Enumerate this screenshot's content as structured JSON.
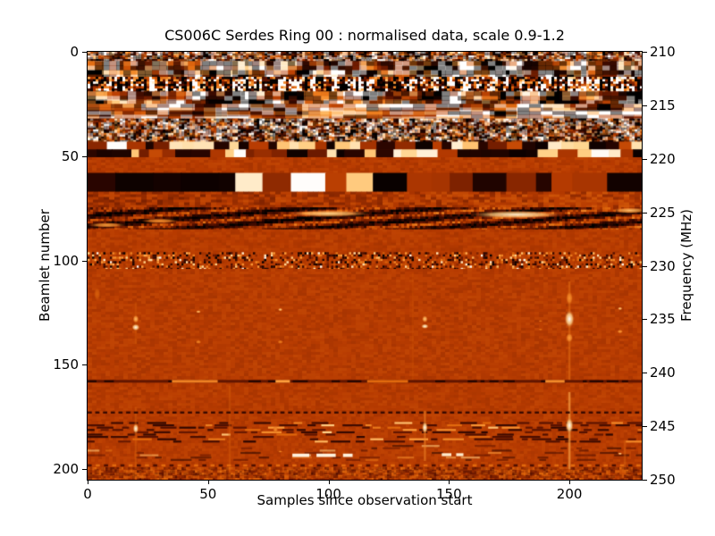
{
  "figure": {
    "title": "CS006C Serdes Ring 00 : normalised data, scale 0.9-1.2",
    "xlabel": "Samples since observation start",
    "ylabel_left": "Beamlet number",
    "ylabel_right": "Frequency (MHz)",
    "background": "#ffffff",
    "border_color": "#000000"
  },
  "axes": {
    "x_ticks": [
      0,
      50,
      100,
      150,
      200
    ],
    "y_left_ticks": [
      0,
      50,
      100,
      150,
      200
    ],
    "y_right_ticks": [
      210,
      215,
      220,
      225,
      230,
      235,
      240,
      245,
      250
    ],
    "x_range": [
      0,
      230
    ],
    "y_left_range": [
      0,
      205
    ],
    "y_right_range": [
      210,
      250
    ]
  },
  "chart_data": {
    "type": "heatmap",
    "title": "CS006C Serdes Ring 00 : normalised data, scale 0.9-1.2",
    "xlabel": "Samples since observation start",
    "ylabel": "Beamlet number",
    "ylabel2": "Frequency (MHz)",
    "x_range_samples": [
      0,
      230
    ],
    "beamlet_range": [
      0,
      205
    ],
    "frequency_range_mhz": [
      210,
      250
    ],
    "value_scale": [
      0.9,
      1.2
    ],
    "colormap_stops": [
      [
        0.0,
        "#000000"
      ],
      [
        0.18,
        "#2a0600"
      ],
      [
        0.35,
        "#5e1400"
      ],
      [
        0.55,
        "#b83c02"
      ],
      [
        0.72,
        "#e26a0e"
      ],
      [
        0.85,
        "#ff9f3c"
      ],
      [
        0.93,
        "#ffd58e"
      ],
      [
        1.0,
        "#ffffff"
      ]
    ],
    "bands": [
      {
        "rows": [
          0,
          4.5
        ],
        "style": "mottlehi",
        "seed": 11,
        "desc": "mottled orange/dark noise"
      },
      {
        "rows": [
          4.5,
          12
        ],
        "style": "blobs",
        "seed": 12,
        "desc": "large dark patches with bright blobs"
      },
      {
        "rows": [
          12,
          19
        ],
        "style": "fine",
        "seed": 13,
        "desc": "dense fine vertical RFI striping"
      },
      {
        "rows": [
          19,
          25
        ],
        "style": "darkblobs",
        "seed": 14,
        "desc": "dark smooth blobs"
      },
      {
        "rows": [
          25,
          32
        ],
        "style": "brightstreaks",
        "seed": 15,
        "desc": "bright horizontal smooth streaks"
      },
      {
        "rows": [
          32,
          43
        ],
        "style": "mottlehi",
        "seed": 16,
        "desc": "noisy mottle, high contrast"
      },
      {
        "rows": [
          43,
          50.5
        ],
        "style": "blocks",
        "seed": 17,
        "desc": "checkered black/white segments"
      },
      {
        "rows": [
          50.5,
          58
        ],
        "style": "flat",
        "seed": 18,
        "desc": "quiet flat band"
      },
      {
        "rows": [
          58,
          67
        ],
        "style": "bigblocks",
        "seed": 19,
        "desc": "large black and white rectangles"
      },
      {
        "rows": [
          67,
          74.5
        ],
        "style": "grad",
        "seed": 20,
        "desc": "orange with slight gradient"
      },
      {
        "rows": [
          74.5,
          85
        ],
        "style": "diag",
        "seed": 21,
        "desc": "dark band with diagonal fringes and bright streaks"
      },
      {
        "rows": [
          85,
          96
        ],
        "style": "flat",
        "seed": 22,
        "desc": "quiet flat band"
      },
      {
        "rows": [
          96,
          104
        ],
        "style": "speckle",
        "seed": 23,
        "desc": "salt-and-pepper speckle RFI"
      },
      {
        "rows": [
          104,
          156.5
        ],
        "style": "flat",
        "seed": 24,
        "desc": "quiet region with isolated transients"
      },
      {
        "rows": [
          158,
          171.5
        ],
        "style": "flat",
        "seed": 25,
        "desc": "quiet flat band"
      },
      {
        "rows": [
          173.5,
          176.5
        ],
        "style": "flat",
        "seed": 26,
        "desc": "quiet flat band"
      },
      {
        "rows": [
          176.5,
          187.5
        ],
        "style": "dashrows",
        "seed": 27,
        "desc": "strip of dark dashes with bright bursts"
      },
      {
        "rows": [
          187.5,
          196.5
        ],
        "style": "faintrows",
        "seed": 28,
        "desc": "faint striped rows"
      },
      {
        "rows": [
          199,
          205
        ],
        "style": "mottlelow",
        "seed": 29,
        "desc": "low-contrast mottle at bottom"
      }
    ],
    "features": {
      "vstreaks": [
        [
          200,
          110,
          158,
          0.68,
          0.45
        ],
        [
          200,
          163,
          200,
          0.8,
          0.55
        ],
        [
          140,
          172,
          196,
          0.75,
          0.4
        ],
        [
          59,
          160,
          204,
          0.63,
          0.35
        ],
        [
          135,
          106,
          158,
          0.6,
          0.25
        ],
        [
          223,
          186,
          199,
          0.68,
          0.3
        ],
        [
          20,
          120,
          140,
          0.62,
          0.3
        ],
        [
          20,
          170,
          200,
          0.65,
          0.35
        ]
      ],
      "spots": [
        [
          4,
          116,
          1.5,
          7,
          0.68
        ],
        [
          20,
          128,
          1.4,
          4,
          0.9
        ],
        [
          20,
          132,
          1.8,
          3.5,
          1.0
        ],
        [
          46,
          124.5,
          1.1,
          1.6,
          0.92
        ],
        [
          46,
          139,
          1.3,
          2,
          0.8
        ],
        [
          80,
          123.5,
          1.1,
          1.6,
          0.93
        ],
        [
          80,
          139,
          1.3,
          2,
          0.78
        ],
        [
          140,
          128,
          1.3,
          3.5,
          0.92
        ],
        [
          140,
          131.5,
          1.7,
          2.5,
          1.0
        ],
        [
          188,
          129,
          0.9,
          1.2,
          0.75
        ],
        [
          188,
          133,
          0.9,
          1.2,
          0.75
        ],
        [
          200,
          118,
          1.6,
          7,
          0.82
        ],
        [
          200,
          128,
          2.2,
          9,
          1.0
        ],
        [
          200,
          137,
          1.6,
          5,
          0.85
        ],
        [
          221,
          123,
          1.1,
          1.6,
          0.93
        ],
        [
          221,
          134,
          1.3,
          2,
          0.85
        ],
        [
          100,
          77.5,
          18,
          3.5,
          0.93
        ],
        [
          178,
          78,
          20,
          4,
          0.97
        ],
        [
          30,
          81,
          8,
          2.5,
          0.82
        ],
        [
          225,
          76,
          8,
          3,
          0.9
        ],
        [
          8,
          83,
          8,
          2.5,
          0.85
        ],
        [
          20,
          180.5,
          1.3,
          5,
          1.0
        ],
        [
          140,
          180,
          1.3,
          6,
          1.0
        ],
        [
          200,
          179,
          1.8,
          8,
          1.0
        ],
        [
          78,
          181,
          1.2,
          3,
          0.82
        ],
        [
          221,
          192.5,
          1.0,
          1.2,
          0.95
        ],
        [
          80,
          191.5,
          1.0,
          1.2,
          0.8
        ]
      ],
      "hline": {
        "b": 157.2,
        "h_rows": 1.3,
        "v": 0.36,
        "bright_segments": [
          [
            35,
            54,
            0.78
          ],
          [
            78,
            84,
            0.85
          ],
          [
            116,
            133,
            0.72
          ],
          [
            190,
            198,
            0.8
          ]
        ]
      },
      "dash_groups": [
        {
          "b": 192.5,
          "h_rows": 1.6,
          "v": 0.98,
          "segments": [
            [
              85,
              92
            ],
            [
              95,
              103
            ],
            [
              106,
              110
            ]
          ]
        },
        {
          "b": 192.3,
          "h_rows": 1.4,
          "v": 0.97,
          "segments": [
            [
              147,
              151
            ],
            [
              153,
              156
            ]
          ]
        }
      ],
      "dotlines": [
        {
          "b": 172.3,
          "h_rows": 1.0,
          "period": 3.2,
          "duty": 0.55,
          "v": 0.22
        },
        {
          "b": 197.6,
          "h_rows": 1.1,
          "period": 3.4,
          "duty": 0.5,
          "v": 0.3,
          "valt": 0.72
        }
      ]
    }
  }
}
